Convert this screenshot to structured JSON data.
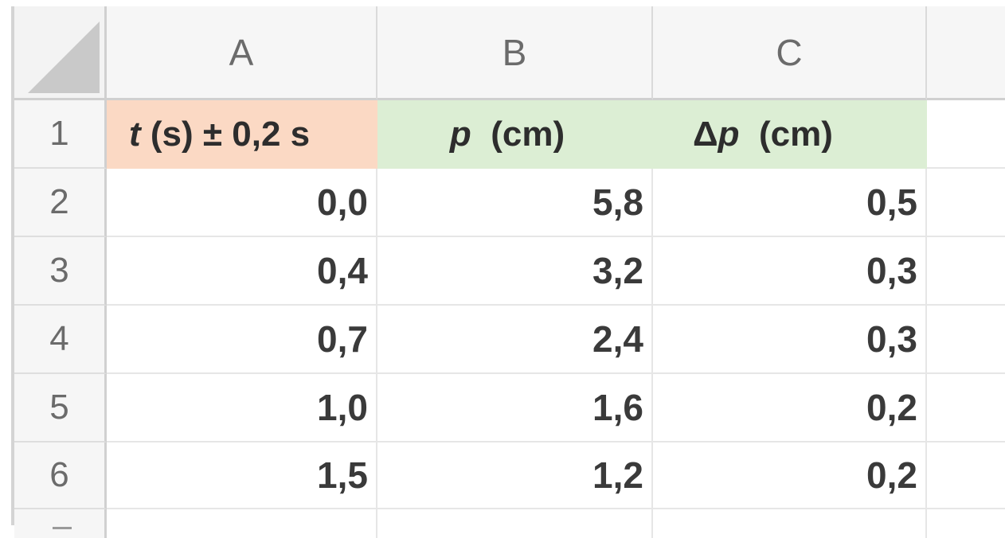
{
  "columns": [
    "A",
    "B",
    "C"
  ],
  "rows": [
    "1",
    "2",
    "3",
    "4",
    "5",
    "6"
  ],
  "header": {
    "a": {
      "var": "t",
      "rest": " (s) ± 0,2 s"
    },
    "b": {
      "var": "p",
      "rest": "  (cm)"
    },
    "c": {
      "delta": "Δ",
      "var": "p",
      "rest": "  (cm)"
    }
  },
  "data": [
    [
      "0,0",
      "5,8",
      "0,5"
    ],
    [
      "0,4",
      "3,2",
      "0,3"
    ],
    [
      "0,7",
      "2,4",
      "0,3"
    ],
    [
      "1,0",
      "1,6",
      "0,2"
    ],
    [
      "1,5",
      "1,2",
      "0,2"
    ]
  ],
  "colors": {
    "header_a_fill": "#fbd9c4",
    "header_bc_fill": "#dceed4"
  }
}
